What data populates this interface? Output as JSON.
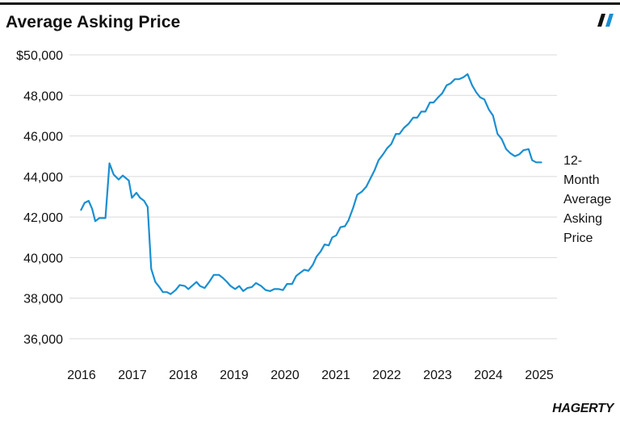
{
  "header": {
    "title": "Average Asking Price"
  },
  "brand": {
    "name": "HAGERTY",
    "accent": "#1a8fd1"
  },
  "chart_data": {
    "type": "line",
    "title": "Average Asking Price",
    "xlabel": "",
    "ylabel": "",
    "xlim": [
      2015.8,
      2025.5
    ],
    "ylim": [
      35500,
      50500
    ],
    "grid": true,
    "legend": "direct-label-right",
    "y_ticks": [
      {
        "value": 36000,
        "label": "36,000"
      },
      {
        "value": 38000,
        "label": "38,000"
      },
      {
        "value": 40000,
        "label": "40,000"
      },
      {
        "value": 42000,
        "label": "42,000"
      },
      {
        "value": 44000,
        "label": "44,000"
      },
      {
        "value": 46000,
        "label": "46,000"
      },
      {
        "value": 48000,
        "label": "48,000"
      },
      {
        "value": 50000,
        "label": "$50,000"
      }
    ],
    "x_ticks": [
      {
        "value": 2016,
        "label": "2016"
      },
      {
        "value": 2017,
        "label": "2017"
      },
      {
        "value": 2018,
        "label": "2018"
      },
      {
        "value": 2019,
        "label": "2019"
      },
      {
        "value": 2020,
        "label": "2020"
      },
      {
        "value": 2021,
        "label": "2021"
      },
      {
        "value": 2022,
        "label": "2022"
      },
      {
        "value": 2023,
        "label": "2023"
      },
      {
        "value": 2024,
        "label": "2024"
      },
      {
        "value": 2025,
        "label": "2025"
      }
    ],
    "series": [
      {
        "name": "12-Month Average Asking Price",
        "color": "#1a8fd1",
        "points": [
          [
            2015.99,
            42350
          ],
          [
            2016.06,
            42700
          ],
          [
            2016.14,
            42800
          ],
          [
            2016.21,
            42400
          ],
          [
            2016.27,
            41800
          ],
          [
            2016.35,
            41950
          ],
          [
            2016.47,
            41950
          ],
          [
            2016.55,
            44650
          ],
          [
            2016.63,
            44100
          ],
          [
            2016.73,
            43850
          ],
          [
            2016.81,
            44050
          ],
          [
            2016.93,
            43800
          ],
          [
            2016.99,
            42950
          ],
          [
            2017.08,
            43200
          ],
          [
            2017.15,
            42950
          ],
          [
            2017.23,
            42800
          ],
          [
            2017.3,
            42500
          ],
          [
            2017.37,
            39450
          ],
          [
            2017.45,
            38800
          ],
          [
            2017.53,
            38550
          ],
          [
            2017.6,
            38300
          ],
          [
            2017.68,
            38300
          ],
          [
            2017.75,
            38200
          ],
          [
            2017.85,
            38400
          ],
          [
            2017.93,
            38650
          ],
          [
            2018.03,
            38600
          ],
          [
            2018.1,
            38450
          ],
          [
            2018.19,
            38650
          ],
          [
            2018.26,
            38800
          ],
          [
            2018.33,
            38600
          ],
          [
            2018.42,
            38500
          ],
          [
            2018.51,
            38800
          ],
          [
            2018.6,
            39150
          ],
          [
            2018.7,
            39150
          ],
          [
            2018.78,
            39000
          ],
          [
            2018.86,
            38800
          ],
          [
            2018.93,
            38600
          ],
          [
            2019.02,
            38450
          ],
          [
            2019.1,
            38600
          ],
          [
            2019.18,
            38350
          ],
          [
            2019.26,
            38500
          ],
          [
            2019.35,
            38550
          ],
          [
            2019.43,
            38750
          ],
          [
            2019.53,
            38600
          ],
          [
            2019.62,
            38400
          ],
          [
            2019.71,
            38350
          ],
          [
            2019.79,
            38450
          ],
          [
            2019.88,
            38450
          ],
          [
            2019.96,
            38400
          ],
          [
            2020.04,
            38700
          ],
          [
            2020.14,
            38700
          ],
          [
            2020.22,
            39100
          ],
          [
            2020.3,
            39250
          ],
          [
            2020.38,
            39400
          ],
          [
            2020.46,
            39350
          ],
          [
            2020.55,
            39650
          ],
          [
            2020.62,
            40050
          ],
          [
            2020.7,
            40300
          ],
          [
            2020.78,
            40650
          ],
          [
            2020.86,
            40600
          ],
          [
            2020.93,
            41000
          ],
          [
            2021.01,
            41100
          ],
          [
            2021.09,
            41500
          ],
          [
            2021.18,
            41550
          ],
          [
            2021.25,
            41850
          ],
          [
            2021.34,
            42450
          ],
          [
            2021.42,
            43100
          ],
          [
            2021.51,
            43250
          ],
          [
            2021.6,
            43500
          ],
          [
            2021.68,
            43900
          ],
          [
            2021.76,
            44300
          ],
          [
            2021.84,
            44800
          ],
          [
            2021.93,
            45100
          ],
          [
            2022.01,
            45400
          ],
          [
            2022.09,
            45600
          ],
          [
            2022.18,
            46100
          ],
          [
            2022.25,
            46100
          ],
          [
            2022.34,
            46400
          ],
          [
            2022.43,
            46600
          ],
          [
            2022.52,
            46900
          ],
          [
            2022.6,
            46900
          ],
          [
            2022.68,
            47200
          ],
          [
            2022.76,
            47200
          ],
          [
            2022.85,
            47650
          ],
          [
            2022.92,
            47650
          ],
          [
            2023.01,
            47900
          ],
          [
            2023.09,
            48100
          ],
          [
            2023.18,
            48500
          ],
          [
            2023.26,
            48600
          ],
          [
            2023.34,
            48800
          ],
          [
            2023.42,
            48800
          ],
          [
            2023.51,
            48900
          ],
          [
            2023.59,
            49050
          ],
          [
            2023.68,
            48500
          ],
          [
            2023.76,
            48150
          ],
          [
            2023.84,
            47900
          ],
          [
            2023.92,
            47800
          ],
          [
            2024.01,
            47300
          ],
          [
            2024.09,
            47000
          ],
          [
            2024.18,
            46100
          ],
          [
            2024.26,
            45850
          ],
          [
            2024.35,
            45350
          ],
          [
            2024.43,
            45150
          ],
          [
            2024.52,
            45000
          ],
          [
            2024.61,
            45100
          ],
          [
            2024.69,
            45300
          ],
          [
            2024.79,
            45350
          ],
          [
            2024.86,
            44800
          ],
          [
            2024.94,
            44700
          ],
          [
            2025.04,
            44700
          ]
        ]
      }
    ]
  }
}
